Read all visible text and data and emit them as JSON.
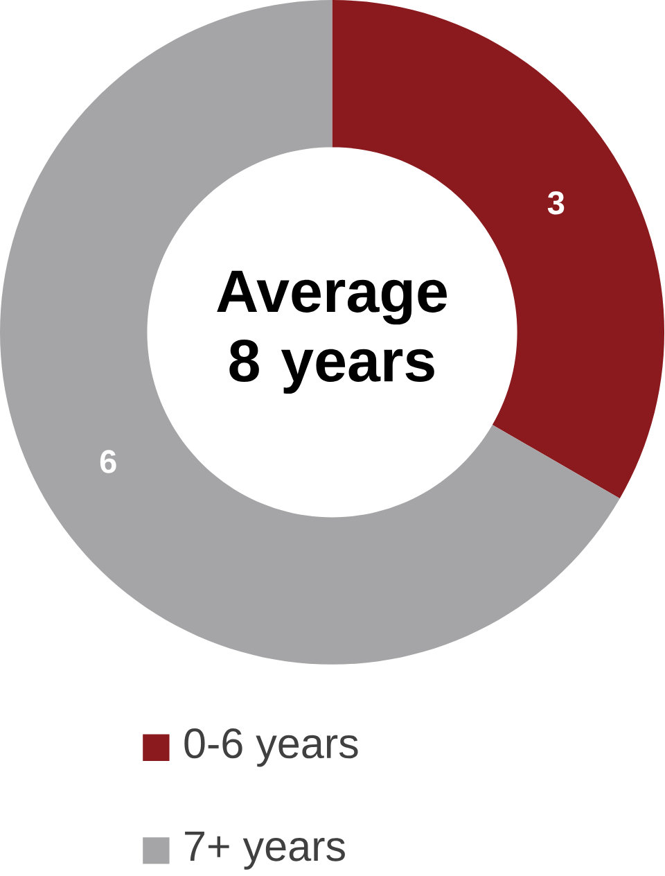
{
  "chart_data": {
    "type": "donut",
    "categories": [
      "0-6 years",
      "7+ years"
    ],
    "values": [
      3,
      6
    ],
    "colors": [
      "#8b1a1e",
      "#a5a5a7"
    ],
    "data_labels": true,
    "legend": "bottom",
    "annotations": [
      "Average 8 years"
    ]
  }
}
